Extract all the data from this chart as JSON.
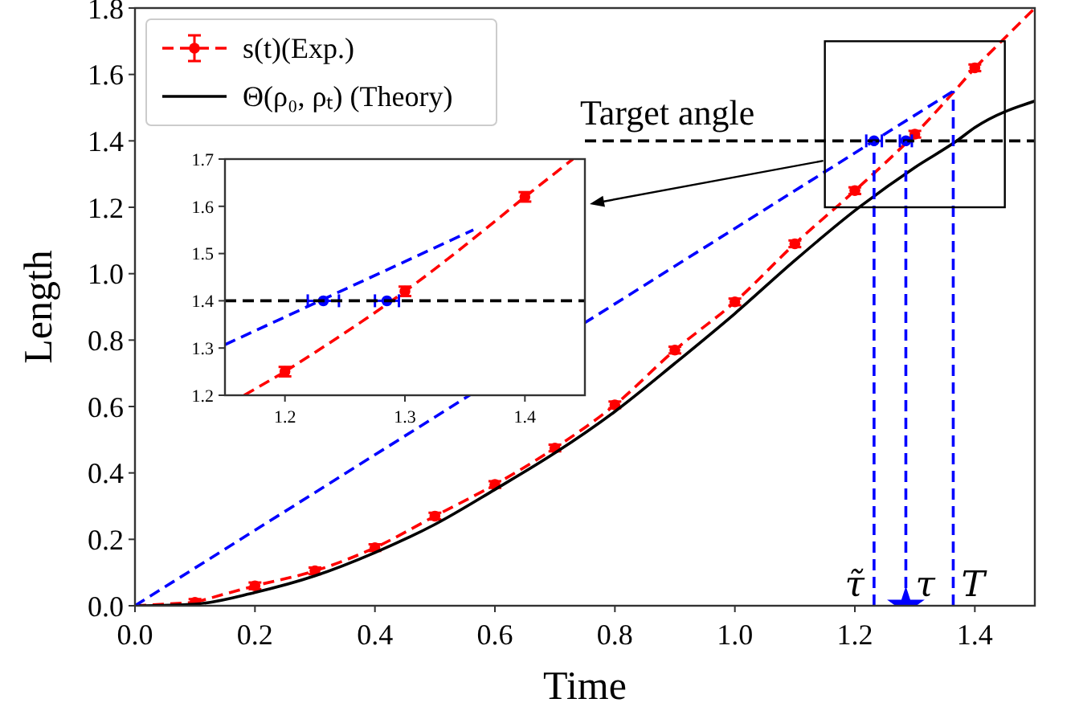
{
  "chart_data": [
    {
      "type": "line",
      "xlabel": "Time",
      "ylabel": "Length",
      "xlim": [
        0,
        1.5
      ],
      "ylim": [
        0,
        1.8
      ],
      "xticks": [
        {
          "value": 0,
          "label": "0.0"
        },
        0.2,
        0.4,
        0.6,
        0.8,
        {
          "value": 1,
          "label": "1.0"
        },
        1.2,
        1.4
      ],
      "yticks": [
        {
          "value": 0,
          "label": "0.0"
        },
        0.2,
        0.4,
        0.6,
        0.8,
        {
          "value": 1,
          "label": "1.0"
        },
        1.2,
        1.4,
        1.6,
        1.8
      ],
      "grid": false,
      "legend": "top left",
      "series": [
        {
          "name": "s(t)(Exp.)",
          "color": "#ff0000",
          "line_style": "dashed",
          "marker": "circle",
          "x": [
            0.1,
            0.2,
            0.3,
            0.4,
            0.5,
            0.6,
            0.7,
            0.8,
            0.9,
            1.0,
            1.1,
            1.2,
            1.3,
            1.4
          ],
          "values": [
            0.01,
            0.06,
            0.105,
            0.175,
            0.27,
            0.365,
            0.475,
            0.605,
            0.77,
            0.915,
            1.09,
            1.25,
            1.42,
            1.62
          ],
          "errors": [
            0.01,
            0.01,
            0.01,
            0.01,
            0.01,
            0.01,
            0.01,
            0.01,
            0.01,
            0.01,
            0.01,
            0.01,
            0.01,
            0.01
          ]
        },
        {
          "color": "#ff0000",
          "line_style": "dashed",
          "marker": "none",
          "x": [
            0,
            0.1
          ],
          "values": [
            0,
            0.01
          ]
        },
        {
          "color": "#ff0000",
          "line_style": "dashed",
          "marker": "none",
          "x": [
            1.4,
            1.5
          ],
          "values": [
            1.62,
            1.8
          ]
        },
        {
          "name": "Θ(ρ₀, ρₜ) (Theory)",
          "color": "#000000",
          "line_style": "solid",
          "marker": "none",
          "x": [
            0,
            0.1,
            0.2,
            0.3,
            0.4,
            0.5,
            0.6,
            0.7,
            0.8,
            0.9,
            1.0,
            1.1,
            1.2,
            1.3,
            1.37,
            1.4,
            1.5
          ],
          "values": [
            0,
            0.005,
            0.04,
            0.09,
            0.16,
            0.245,
            0.35,
            0.46,
            0.585,
            0.73,
            0.88,
            1.04,
            1.19,
            1.32,
            1.4,
            1.44,
            1.52
          ]
        },
        {
          "color": "#0000ff",
          "line_style": "dashed",
          "marker": "none",
          "x": [
            0,
            1.364
          ],
          "values": [
            0,
            1.55
          ]
        },
        {
          "type": "scatter",
          "color": "#0000ff",
          "marker": "circle",
          "x": [
            1.232,
            1.285
          ],
          "values": [
            1.4,
            1.4
          ],
          "xerrors": [
            0.013,
            0.01
          ]
        },
        {
          "color": "#000000",
          "line_style": "dashed",
          "marker": "none",
          "x": [
            0.75,
            1.5
          ],
          "values": [
            1.4,
            1.4
          ]
        },
        {
          "color": "#0000ff",
          "line_style": "dashed",
          "marker": "none",
          "x": [
            1.232,
            1.232
          ],
          "values": [
            0,
            1.4
          ]
        },
        {
          "color": "#0000ff",
          "line_style": "dashed",
          "marker": "none",
          "x": [
            1.285,
            1.285
          ],
          "values": [
            0,
            1.4
          ]
        },
        {
          "color": "#0000ff",
          "line_style": "dashed",
          "marker": "none",
          "x": [
            1.364,
            1.364
          ],
          "values": [
            0,
            1.55
          ]
        },
        {
          "type": "scatter",
          "color": "#0000ff",
          "marker": "star",
          "x": [
            1.285
          ],
          "values": [
            0
          ]
        }
      ],
      "annotations": [
        {
          "text": "Target angle",
          "x": 0.75,
          "y": 1.4
        },
        {
          "text": "τ̃",
          "x": 1.232,
          "y": 0
        },
        {
          "text": "τ",
          "x": 1.285,
          "y": 0
        },
        {
          "text": "T",
          "x": 1.364,
          "y": 0
        }
      ]
    },
    {
      "type": "line",
      "xlim": [
        1.15,
        1.45
      ],
      "ylim": [
        1.2,
        1.7
      ],
      "xticks": [
        1.2,
        1.3,
        1.4
      ],
      "yticks": [
        1.2,
        1.3,
        1.4,
        1.5,
        1.6,
        1.7
      ],
      "grid": false,
      "series": [
        {
          "color": "#ff0000",
          "line_style": "dashed",
          "marker": "circle",
          "x": [
            1.2,
            1.3,
            1.4
          ],
          "values": [
            1.25,
            1.42,
            1.62
          ],
          "errors": [
            0.01,
            0.01,
            0.01
          ]
        },
        {
          "color": "#ff0000",
          "line_style": "dashed",
          "marker": "none",
          "x": [
            1.166,
            1.2
          ],
          "values": [
            1.2,
            1.25
          ]
        },
        {
          "color": "#ff0000",
          "line_style": "dashed",
          "marker": "none",
          "x": [
            1.4,
            1.44
          ],
          "values": [
            1.62,
            1.7
          ]
        },
        {
          "color": "#0000ff",
          "line_style": "dashed",
          "marker": "none",
          "x": [
            1.15,
            1.357
          ],
          "values": [
            1.307,
            1.55
          ]
        },
        {
          "type": "scatter",
          "color": "#0000ff",
          "marker": "circle",
          "x": [
            1.232,
            1.285
          ],
          "values": [
            1.4,
            1.4
          ],
          "xerrors": [
            0.013,
            0.01
          ]
        },
        {
          "color": "#000000",
          "line_style": "dashed",
          "marker": "none",
          "x": [
            1.15,
            1.45
          ],
          "values": [
            1.4,
            1.4
          ]
        }
      ]
    }
  ]
}
